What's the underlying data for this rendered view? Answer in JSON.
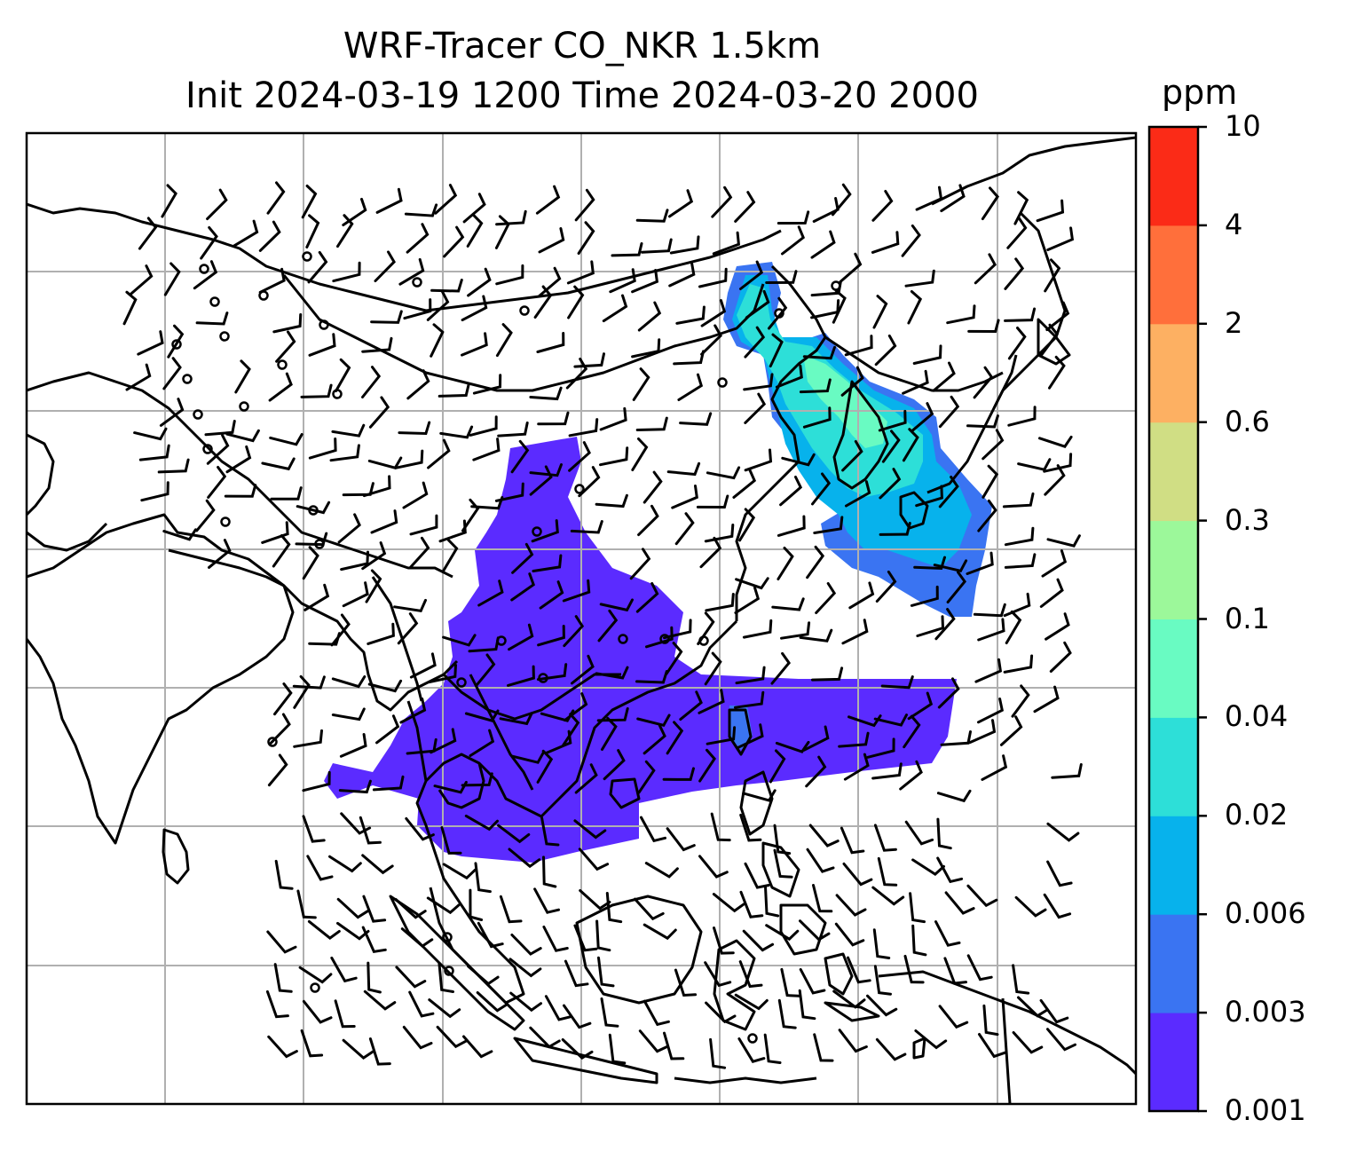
{
  "title": {
    "line1": "WRF-Tracer CO_NKR 1.5km",
    "line2": "Init 2024-03-19 1200 Time 2024-03-20 2000"
  },
  "colorbar": {
    "unit": "ppm",
    "labels": [
      "0.001",
      "0.003",
      "0.006",
      "0.02",
      "0.04",
      "0.1",
      "0.3",
      "0.6",
      "2",
      "4",
      "10"
    ],
    "colors": [
      "#5b2bff",
      "#3a74f2",
      "#07b2ec",
      "#2ddfd8",
      "#69fbc2",
      "#9cf89a",
      "#d0de84",
      "#fdb062",
      "#ff6f3b",
      "#fb2b17"
    ]
  },
  "map": {
    "gridlines": true,
    "coastline_color": "#000000",
    "grid_color": "#b0b0b0"
  }
}
